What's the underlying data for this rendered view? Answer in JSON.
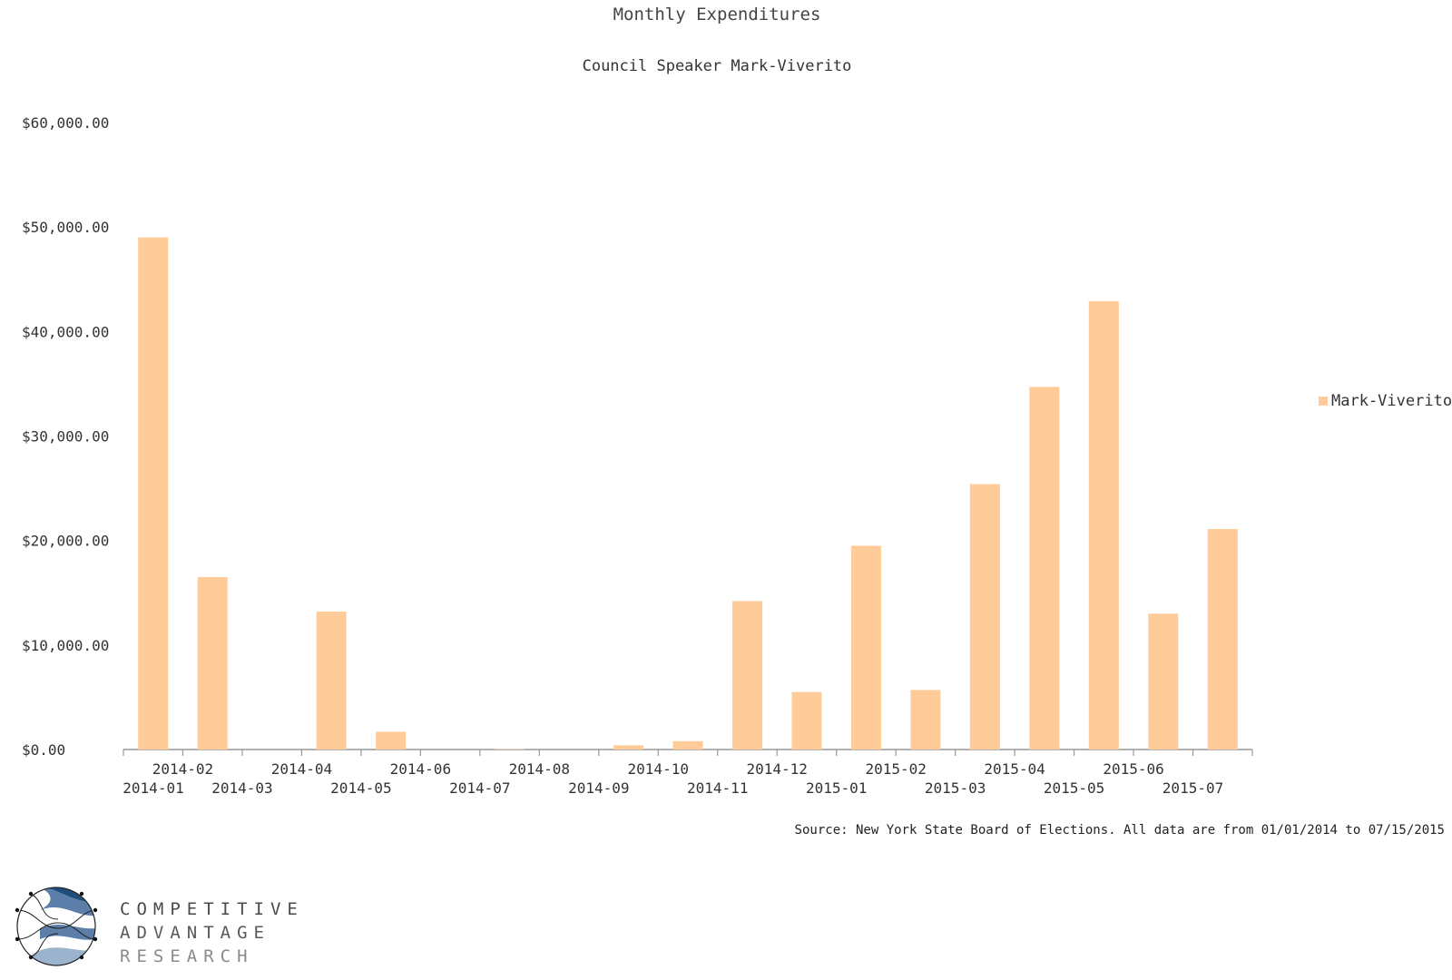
{
  "chart_data": {
    "type": "bar",
    "title": "Monthly Expenditures",
    "subtitle": "Council Speaker Mark-Viverito",
    "xlabel": "",
    "ylabel": "",
    "categories": [
      "2014-01",
      "2014-02",
      "2014-03",
      "2014-04",
      "2014-05",
      "2014-06",
      "2014-07",
      "2014-08",
      "2014-09",
      "2014-10",
      "2014-11",
      "2014-12",
      "2015-01",
      "2015-02",
      "2015-03",
      "2015-04",
      "2015-05",
      "2015-06",
      "2015-07"
    ],
    "series": [
      {
        "name": "Mark-Viverito",
        "color": "#ffcc99",
        "values": [
          49000,
          16500,
          0,
          13200,
          1700,
          0,
          50,
          0,
          400,
          800,
          14200,
          5500,
          19500,
          5700,
          25400,
          34700,
          42900,
          13000,
          21100
        ]
      }
    ],
    "ylim": [
      0,
      60000
    ],
    "yticks": [
      0,
      10000,
      20000,
      30000,
      40000,
      50000,
      60000
    ],
    "ytick_labels": [
      "$0.00",
      "$10,000.00",
      "$20,000.00",
      "$30,000.00",
      "$40,000.00",
      "$50,000.00",
      "$60,000.00"
    ],
    "grid": false,
    "legend_position": "right"
  },
  "source_note": "Source: New York State Board of Elections.  All data are from 01/01/2014 to 07/15/2015",
  "logo": {
    "line1": "COMPETITIVE",
    "line2": "ADVANTAGE",
    "line3": "RESEARCH",
    "colors": {
      "line1": "#4a4a4a",
      "line2": "#5a5a5a",
      "line3": "#8a8a8a",
      "dark_blue": "#1f4e7d",
      "mid_blue": "#5b7fa8",
      "light_blue": "#9bb3cc"
    }
  },
  "colors": {
    "bar": "#ffcc99",
    "axis": "#999999",
    "text": "#333333"
  }
}
